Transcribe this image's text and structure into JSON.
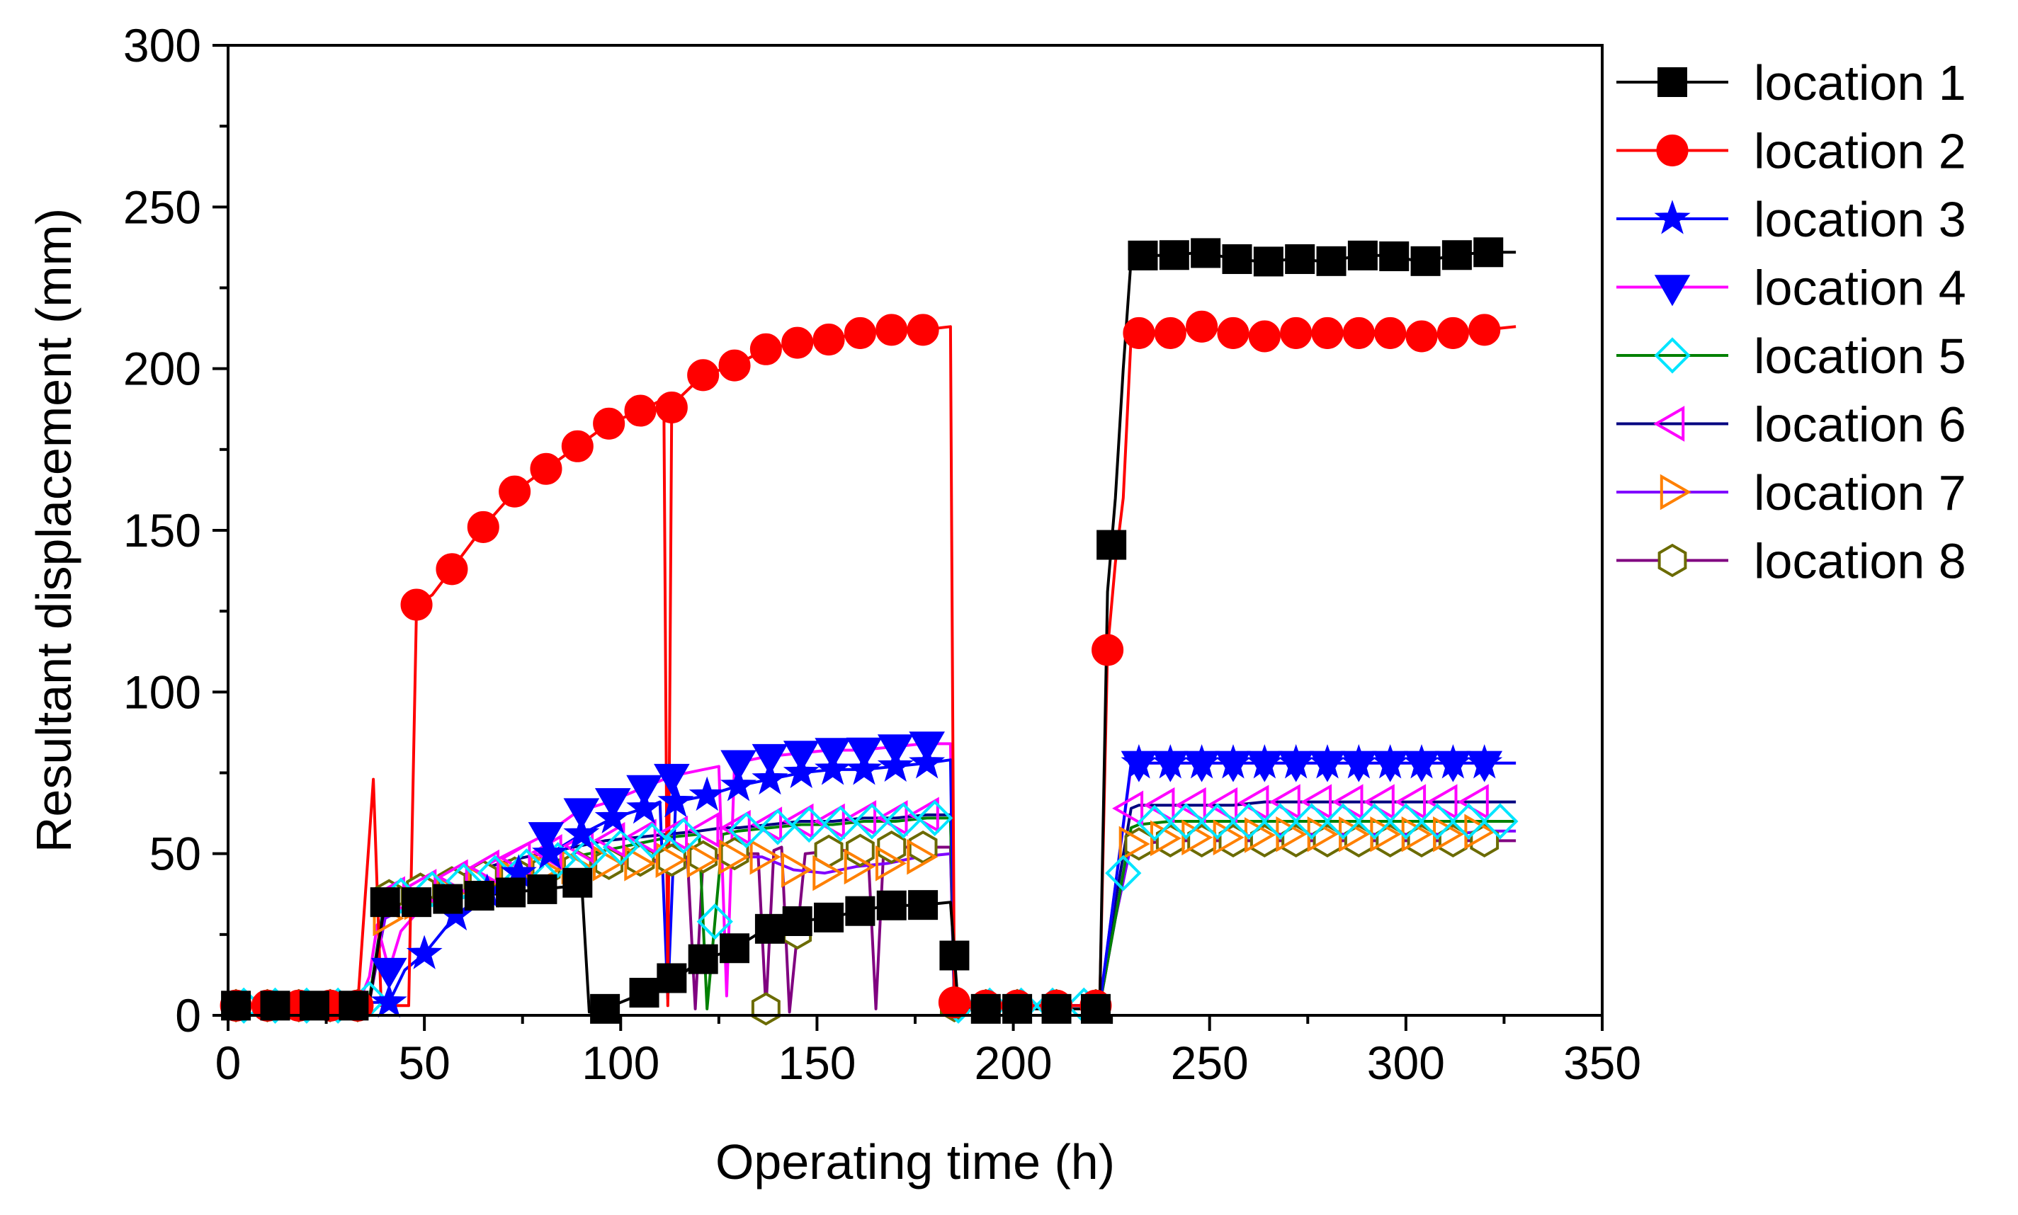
{
  "chart_data": {
    "type": "line",
    "title": "",
    "xlabel": "Operating time (h)",
    "ylabel": "Resultant displacement (mm)",
    "xlim": [
      0,
      350
    ],
    "ylim": [
      0,
      300
    ],
    "xticks": [
      0,
      50,
      100,
      150,
      200,
      250,
      300,
      350
    ],
    "yticks": [
      0,
      50,
      100,
      150,
      200,
      250,
      300
    ],
    "grid": false,
    "legend_position": "right",
    "series": [
      {
        "name": "location 1",
        "color": "#000000",
        "marker": "square",
        "marker_fill": "#000000",
        "x": [
          2,
          10,
          18,
          26,
          33,
          36,
          40,
          44,
          48,
          56,
          64,
          72,
          80,
          88,
          90,
          92,
          96,
          100,
          104,
          108,
          112,
          116,
          120,
          128,
          136,
          144,
          152,
          160,
          168,
          176,
          184,
          186,
          192,
          200,
          208,
          216,
          222,
          224,
          226,
          228,
          230,
          232,
          240,
          248,
          256,
          264,
          272,
          280,
          288,
          296,
          304,
          312,
          320,
          328
        ],
        "y": [
          3,
          3,
          3,
          3,
          3,
          4,
          35,
          32,
          35,
          36,
          37,
          38,
          39,
          40,
          42,
          1,
          2,
          4,
          6,
          8,
          11,
          13,
          17,
          20,
          26,
          29,
          30,
          32,
          34,
          34,
          35,
          2,
          2,
          2,
          2,
          2,
          2,
          131,
          160,
          200,
          234,
          235,
          235,
          236,
          234,
          233,
          234,
          233,
          235,
          235,
          233,
          235,
          236,
          236
        ],
        "marker_x": [
          2,
          12,
          22,
          32,
          40,
          48,
          56,
          64,
          72,
          80,
          89,
          96,
          106,
          113,
          121,
          129,
          138,
          145,
          153,
          161,
          169,
          177,
          185,
          193,
          201,
          211,
          221,
          225,
          233,
          241,
          249,
          257,
          265,
          273,
          281,
          289,
          297,
          305,
          313,
          321
        ]
      },
      {
        "name": "location 2",
        "color": "#ff0000",
        "marker": "circle",
        "marker_fill": "#ff0000",
        "x": [
          2,
          10,
          18,
          26,
          33,
          37,
          39,
          42,
          46,
          48,
          52,
          57,
          65,
          73,
          81,
          89,
          97,
          105,
          110,
          111,
          112,
          113,
          115,
          121,
          129,
          137,
          145,
          153,
          161,
          169,
          177,
          184,
          185,
          186,
          192,
          200,
          208,
          216,
          222,
          224,
          226,
          228,
          230,
          232,
          240,
          248,
          256,
          264,
          272,
          280,
          288,
          296,
          304,
          312,
          320,
          328
        ],
        "y": [
          3,
          3,
          3,
          3,
          3,
          73,
          3,
          3,
          3,
          127,
          130,
          138,
          151,
          162,
          169,
          176,
          183,
          187,
          190,
          188,
          3,
          188,
          191,
          198,
          201,
          206,
          208,
          209,
          211,
          212,
          212,
          213,
          4,
          3,
          3,
          3,
          3,
          3,
          3,
          113,
          140,
          160,
          210,
          211,
          211,
          213,
          211,
          210,
          211,
          211,
          211,
          211,
          210,
          211,
          212,
          213
        ],
        "marker_x": [
          2,
          10,
          18,
          26,
          33,
          48,
          57,
          65,
          73,
          81,
          89,
          97,
          105,
          113,
          121,
          129,
          137,
          145,
          153,
          161,
          169,
          177,
          185,
          193,
          201,
          211,
          221,
          224,
          232,
          240,
          248,
          256,
          264,
          272,
          280,
          288,
          296,
          304,
          312,
          320
        ]
      },
      {
        "name": "location 3",
        "color": "#0000ff",
        "marker": "star",
        "marker_fill": "#0000ff",
        "x": [
          2,
          10,
          18,
          26,
          33,
          36,
          41,
          45,
          50,
          58,
          66,
          74,
          82,
          90,
          98,
          106,
          110,
          112,
          114,
          122,
          130,
          138,
          146,
          154,
          162,
          170,
          178,
          184,
          185,
          186,
          192,
          200,
          208,
          216,
          222,
          226,
          230,
          232,
          240,
          248,
          256,
          264,
          272,
          280,
          288,
          296,
          304,
          312,
          320,
          328
        ],
        "y": [
          3,
          3,
          3,
          3,
          3,
          4,
          4,
          14,
          19,
          31,
          38,
          44,
          50,
          56,
          61,
          64,
          66,
          5,
          66,
          68,
          71,
          73,
          75,
          76,
          76,
          77,
          78,
          79,
          3,
          3,
          3,
          3,
          3,
          3,
          3,
          40,
          78,
          78,
          78,
          78,
          78,
          78,
          78,
          78,
          78,
          78,
          78,
          78,
          78,
          78
        ],
        "marker_x": [
          41,
          50,
          58,
          66,
          74,
          82,
          90,
          98,
          106,
          114,
          122,
          130,
          138,
          146,
          154,
          162,
          170,
          178,
          232,
          240,
          248,
          256,
          264,
          272,
          280,
          288,
          296,
          304,
          312,
          320
        ]
      },
      {
        "name": "location 4",
        "color": "#ff00ff",
        "marker": "triangle-down",
        "marker_fill": "#0000ff",
        "x": [
          2,
          10,
          18,
          26,
          33,
          36,
          38,
          41,
          44,
          49,
          57,
          65,
          73,
          81,
          89,
          97,
          105,
          111,
          113,
          121,
          125,
          127,
          129,
          137,
          145,
          153,
          161,
          169,
          177,
          184,
          185,
          186,
          192,
          200,
          208,
          216,
          222,
          226,
          230,
          232,
          240,
          248,
          256,
          264,
          272,
          280,
          288,
          296,
          304,
          312,
          320,
          328
        ],
        "y": [
          3,
          3,
          3,
          3,
          3,
          12,
          28,
          14,
          26,
          33,
          40,
          46,
          51,
          56,
          63,
          66,
          70,
          73,
          74,
          76,
          77,
          6,
          78,
          80,
          81,
          82,
          82,
          83,
          84,
          84,
          4,
          3,
          3,
          3,
          3,
          3,
          3,
          40,
          77,
          78,
          78,
          78,
          78,
          78,
          78,
          78,
          78,
          78,
          78,
          78,
          78,
          78
        ],
        "marker_x": [
          41,
          81,
          90,
          98,
          106,
          113,
          130,
          138,
          146,
          154,
          162,
          170,
          178,
          232,
          240,
          248,
          256,
          264,
          272,
          280,
          288,
          296,
          304,
          312,
          320
        ]
      },
      {
        "name": "location 5",
        "color": "#008000",
        "marker": "diamond",
        "marker_fill": "none",
        "marker_stroke": "#00e5ff",
        "x": [
          2,
          10,
          18,
          26,
          33,
          36,
          40,
          48,
          56,
          64,
          72,
          80,
          88,
          96,
          104,
          112,
          120,
          122,
          126,
          130,
          138,
          146,
          154,
          162,
          170,
          178,
          184,
          185,
          186,
          192,
          200,
          208,
          216,
          222,
          226,
          230,
          232,
          240,
          248,
          256,
          264,
          272,
          280,
          288,
          296,
          304,
          312,
          320,
          328
        ],
        "y": [
          3,
          3,
          3,
          3,
          3,
          5,
          36,
          38,
          40,
          43,
          45,
          47,
          49,
          51,
          53,
          55,
          56,
          2,
          56,
          57,
          58,
          59,
          59,
          60,
          60,
          61,
          61,
          3,
          3,
          3,
          3,
          3,
          3,
          3,
          30,
          58,
          59,
          60,
          60,
          60,
          60,
          60,
          60,
          60,
          60,
          60,
          60,
          60,
          60
        ],
        "marker_x": [
          4,
          12,
          20,
          28,
          36,
          44,
          52,
          60,
          68,
          76,
          84,
          92,
          100,
          108,
          116,
          124,
          132,
          140,
          148,
          156,
          164,
          172,
          180,
          186,
          194,
          202,
          210,
          218,
          228,
          236,
          244,
          252,
          260,
          268,
          276,
          284,
          292,
          300,
          308,
          316,
          324
        ]
      },
      {
        "name": "location 6",
        "color": "#000080",
        "marker": "triangle-left",
        "marker_fill": "none",
        "marker_stroke": "#ff00ff",
        "x": [
          2,
          10,
          18,
          26,
          33,
          36,
          40,
          48,
          56,
          64,
          72,
          80,
          88,
          96,
          104,
          112,
          120,
          126,
          130,
          138,
          146,
          154,
          162,
          170,
          178,
          184,
          185,
          186,
          192,
          200,
          208,
          216,
          222,
          226,
          230,
          232,
          240,
          248,
          256,
          264,
          272,
          280,
          288,
          296,
          304,
          312,
          320,
          328
        ],
        "y": [
          3,
          3,
          3,
          3,
          3,
          5,
          37,
          39,
          42,
          45,
          48,
          50,
          52,
          54,
          55,
          56,
          57,
          58,
          58,
          59,
          60,
          60,
          61,
          61,
          62,
          62,
          3,
          3,
          3,
          3,
          3,
          3,
          3,
          35,
          64,
          65,
          65,
          65,
          65,
          66,
          66,
          66,
          66,
          66,
          66,
          66,
          66,
          66
        ],
        "marker_x": [
          42,
          50,
          58,
          66,
          74,
          82,
          90,
          98,
          106,
          114,
          122,
          130,
          138,
          146,
          154,
          162,
          170,
          178,
          230,
          238,
          246,
          254,
          262,
          270,
          278,
          286,
          294,
          302,
          310,
          318
        ]
      },
      {
        "name": "location 7",
        "color": "#8000ff",
        "marker": "triangle-right",
        "marker_fill": "none",
        "marker_stroke": "#ff8000",
        "x": [
          2,
          10,
          18,
          26,
          33,
          36,
          40,
          48,
          56,
          64,
          72,
          80,
          88,
          96,
          104,
          112,
          120,
          128,
          136,
          144,
          152,
          160,
          168,
          176,
          184,
          185,
          186,
          192,
          200,
          208,
          216,
          222,
          226,
          230,
          232,
          240,
          248,
          256,
          264,
          272,
          280,
          288,
          296,
          304,
          312,
          320,
          328
        ],
        "y": [
          3,
          3,
          3,
          3,
          3,
          5,
          30,
          35,
          38,
          41,
          43,
          45,
          46,
          47,
          47,
          48,
          48,
          49,
          49,
          45,
          44,
          46,
          47,
          49,
          50,
          3,
          3,
          3,
          3,
          3,
          3,
          3,
          30,
          53,
          54,
          55,
          55,
          55,
          56,
          56,
          56,
          56,
          56,
          56,
          56,
          57,
          57
        ],
        "marker_x": [
          40,
          48,
          56,
          64,
          72,
          80,
          88,
          96,
          104,
          112,
          120,
          128,
          136,
          144,
          152,
          160,
          168,
          176,
          230,
          238,
          246,
          254,
          262,
          270,
          278,
          286,
          294,
          302,
          310,
          318
        ]
      },
      {
        "name": "location 8",
        "color": "#800080",
        "marker": "hexagon",
        "marker_fill": "#ffffff",
        "marker_stroke": "#6b6b00",
        "x": [
          2,
          10,
          18,
          26,
          33,
          36,
          41,
          49,
          57,
          65,
          73,
          81,
          89,
          97,
          105,
          113,
          117,
          119,
          121,
          129,
          135,
          137,
          139,
          141,
          143,
          147,
          155,
          163,
          165,
          167,
          171,
          179,
          184,
          185,
          186,
          192,
          200,
          208,
          216,
          222,
          226,
          230,
          232,
          240,
          248,
          256,
          264,
          272,
          280,
          288,
          296,
          304,
          312,
          320,
          328
        ],
        "y": [
          3,
          3,
          3,
          3,
          3,
          4,
          37,
          39,
          41,
          43,
          44,
          45,
          46,
          47,
          48,
          48,
          49,
          2,
          49,
          50,
          50,
          2,
          51,
          52,
          1,
          50,
          51,
          51,
          2,
          52,
          52,
          52,
          52,
          3,
          3,
          3,
          3,
          3,
          3,
          3,
          30,
          53,
          53,
          54,
          54,
          54,
          54,
          54,
          54,
          54,
          54,
          54,
          54,
          54,
          54
        ],
        "marker_x": [
          2,
          10,
          18,
          26,
          33,
          41,
          49,
          57,
          65,
          73,
          81,
          89,
          97,
          105,
          113,
          121,
          129,
          137,
          145,
          153,
          161,
          169,
          177,
          185,
          193,
          201,
          211,
          221,
          232,
          240,
          248,
          256,
          264,
          272,
          280,
          288,
          296,
          304,
          312,
          320
        ]
      }
    ]
  }
}
